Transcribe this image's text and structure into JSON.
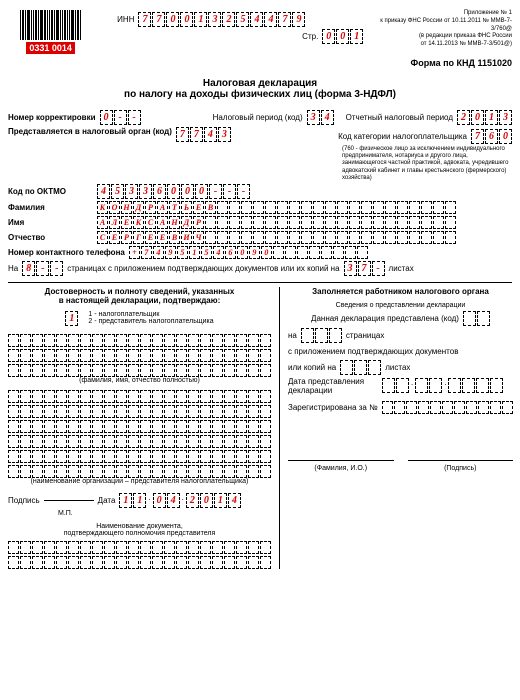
{
  "barcode_number": "0331 0014",
  "header": {
    "inn_label": "ИНН",
    "inn": "770013254479",
    "page_label": "Стр.",
    "page": "001",
    "attachment": "Приложение № 1",
    "order1": "к приказу ФНС России от 10.11.2011 № ММВ-7-3/760@",
    "order2": "(в редакции приказа ФНС России",
    "order3": "от 14.11.2013 № ММВ-7-3/501@)",
    "form_code": "Форма по КНД 1151020"
  },
  "title1": "Налоговая декларация",
  "title2": "по налогу на доходы физических лиц (форма 3-НДФЛ)",
  "fields": {
    "correction_label": "Номер корректировки",
    "correction": "0--",
    "tax_period_label": "Налоговый период (код)",
    "tax_period": "34",
    "report_period_label": "Отчетный налоговый период",
    "report_period": "2013",
    "tax_org_label": "Представляется в налоговый орган (код)",
    "tax_org": "7743",
    "category_label": "Код категории налогоплательщика",
    "category": "760",
    "category_note": "(760 - физическое лицо за исключением индивидуального предпринимателя, нотариуса и другого лица, занимающегося частной практикой, адвоката, учредившего адвокатский кабинет и главы крестьянского (фермерского) хозяйства)",
    "oktmo_label": "Код по ОКТМО",
    "oktmo": "45336000---",
    "surname_label": "Фамилия",
    "surname": "КОНДРАТЬЕВ",
    "name_label": "Имя",
    "name": "АЛЕКСАНДР",
    "patronymic_label": "Отчество",
    "patronymic": "СЕРГЕЕВИЧ",
    "phone_label": "Номер контактного телефона",
    "phone": "+74951546090",
    "pages_pre": "На",
    "pages": "8--",
    "pages_post": "страницах с приложением подтверждающих документов или их копий на",
    "attach": "37-",
    "attach_post": "листах"
  },
  "left": {
    "head1": "Достоверность и полноту сведений, указанных",
    "head2": "в настоящей декларации, подтверждаю:",
    "choice": "1",
    "opt1": "1 - налогоплательщик",
    "opt2": "2 - представитель налогоплательщика",
    "fio_note": "(фамилия, имя, отчество полностью)",
    "sign_label": "Подпись",
    "date_label": "Дата",
    "date": "11.04.2014",
    "mp": "М.П.",
    "doc_head": "Наименование документа,",
    "doc_head2": "подтверждающего полномочия представителя",
    "org_note": "(наименование организации – представителя налогоплательщика)"
  },
  "right": {
    "head": "Заполняется работником налогового органа",
    "sub1": "Сведения о представлении декларации",
    "sub2": "Данная декларация представлена (код)",
    "on": "на",
    "pages": "страницах",
    "with_doc": "с приложением подтверждающих документов",
    "copies": "или копий на",
    "sheets": "листах",
    "date_label": "Дата представления декларации",
    "reg": "Зарегистрирована за №",
    "fio": "(Фамилия, И.О.)",
    "sign": "(Подпись)"
  }
}
